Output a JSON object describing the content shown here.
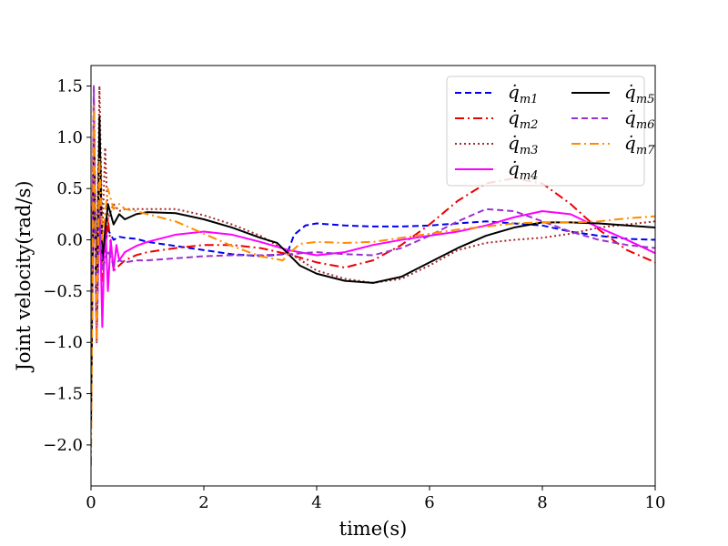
{
  "chart_data": {
    "type": "line",
    "title": "",
    "xlabel": "time(s)",
    "ylabel": "Joint velocity(rad/s)",
    "xlim": [
      0,
      10
    ],
    "ylim": [
      -2.4,
      1.7
    ],
    "xticks": [
      0,
      2,
      4,
      6,
      8,
      10
    ],
    "xtick_labels": [
      "0",
      "2",
      "4",
      "6",
      "8",
      "10"
    ],
    "yticks": [
      -2.0,
      -1.5,
      -1.0,
      -0.5,
      0.0,
      0.5,
      1.0,
      1.5
    ],
    "ytick_labels": [
      "−2.0",
      "−1.5",
      "−1.0",
      "−0.5",
      "0.0",
      "0.5",
      "1.0",
      "1.5"
    ],
    "grid": false,
    "legend_position": "top-right",
    "series": [
      {
        "name": "q̇m1",
        "label_main": "q̇",
        "label_sub": "m1",
        "color": "#0000ee",
        "dash": "dashed",
        "x": [
          0,
          0.05,
          0.1,
          0.15,
          0.2,
          0.3,
          0.4,
          0.5,
          0.6,
          0.8,
          1.0,
          1.5,
          2.0,
          2.5,
          3.0,
          3.4,
          3.5,
          3.6,
          3.8,
          4.0,
          4.5,
          5.0,
          5.5,
          6.0,
          6.5,
          7.0,
          7.5,
          8.0,
          8.5,
          9.0,
          9.5,
          10.0
        ],
        "y": [
          -1.5,
          0.6,
          -0.3,
          0.4,
          -0.2,
          0.1,
          0.0,
          0.03,
          0.02,
          0.01,
          -0.02,
          -0.06,
          -0.1,
          -0.14,
          -0.16,
          -0.14,
          -0.1,
          0.05,
          0.14,
          0.16,
          0.14,
          0.13,
          0.13,
          0.14,
          0.16,
          0.18,
          0.16,
          0.14,
          0.08,
          0.04,
          0.01,
          0.0
        ]
      },
      {
        "name": "q̇m2",
        "label_main": "q̇",
        "label_sub": "m2",
        "color": "#ee0000",
        "dash": "dashdot",
        "x": [
          0,
          0.05,
          0.1,
          0.15,
          0.2,
          0.3,
          0.4,
          0.5,
          0.6,
          0.8,
          1.0,
          1.5,
          2.0,
          2.5,
          3.0,
          3.5,
          4.0,
          4.5,
          5.0,
          5.5,
          6.0,
          6.5,
          7.0,
          7.5,
          8.0,
          8.5,
          9.0,
          9.5,
          10.0
        ],
        "y": [
          -1.8,
          1.3,
          -0.6,
          0.5,
          -0.4,
          0.2,
          -0.3,
          -0.25,
          -0.2,
          -0.15,
          -0.12,
          -0.08,
          -0.05,
          -0.05,
          -0.08,
          -0.14,
          -0.22,
          -0.27,
          -0.2,
          -0.05,
          0.15,
          0.38,
          0.55,
          0.6,
          0.55,
          0.35,
          0.1,
          -0.1,
          -0.22
        ]
      },
      {
        "name": "q̇m3",
        "label_main": "q̇",
        "label_sub": "m3",
        "color": "#a52a2a",
        "dash": "dotted",
        "x": [
          0,
          0.05,
          0.1,
          0.15,
          0.2,
          0.25,
          0.3,
          0.4,
          0.5,
          0.6,
          0.8,
          1.0,
          1.5,
          2.0,
          2.5,
          3.0,
          3.5,
          4.0,
          4.5,
          5.0,
          5.5,
          6.0,
          6.5,
          7.0,
          7.5,
          8.0,
          8.5,
          9.0,
          9.5,
          10.0
        ],
        "y": [
          -1.2,
          1.4,
          -0.5,
          1.5,
          0.0,
          0.9,
          0.2,
          0.35,
          0.28,
          0.3,
          0.3,
          0.3,
          0.3,
          0.24,
          0.15,
          0.04,
          -0.12,
          -0.3,
          -0.38,
          -0.42,
          -0.38,
          -0.25,
          -0.1,
          -0.03,
          0.0,
          0.02,
          0.06,
          0.12,
          0.15,
          0.18
        ]
      },
      {
        "name": "q̇m4",
        "label_main": "q̇",
        "label_sub": "m4",
        "color": "#ff00ff",
        "dash": "solid",
        "x": [
          0,
          0.05,
          0.1,
          0.15,
          0.2,
          0.25,
          0.3,
          0.35,
          0.4,
          0.45,
          0.5,
          0.6,
          0.8,
          1.0,
          1.5,
          2.0,
          2.5,
          3.0,
          3.5,
          4.0,
          4.5,
          5.0,
          5.5,
          6.0,
          6.5,
          7.0,
          7.5,
          8.0,
          8.5,
          9.0,
          9.5,
          10.0
        ],
        "y": [
          -0.5,
          0.9,
          -1.0,
          0.4,
          -0.85,
          0.2,
          -0.5,
          0.0,
          -0.3,
          -0.05,
          -0.2,
          -0.12,
          -0.06,
          -0.02,
          0.05,
          0.08,
          0.05,
          -0.02,
          -0.1,
          -0.15,
          -0.12,
          -0.05,
          0.0,
          0.04,
          0.08,
          0.14,
          0.22,
          0.28,
          0.25,
          0.12,
          0.0,
          -0.13
        ]
      },
      {
        "name": "q̇m5",
        "label_main": "q̇",
        "label_sub": "m5",
        "color": "#000000",
        "dash": "solid",
        "x": [
          0,
          0.05,
          0.1,
          0.15,
          0.2,
          0.3,
          0.4,
          0.5,
          0.6,
          0.8,
          1.0,
          1.5,
          2.0,
          2.5,
          3.0,
          3.3,
          3.5,
          3.7,
          4.0,
          4.5,
          5.0,
          5.5,
          6.0,
          6.5,
          7.0,
          7.5,
          8.0,
          8.5,
          9.0,
          9.5,
          10.0
        ],
        "y": [
          -1.8,
          1.0,
          -0.8,
          1.2,
          -0.2,
          0.35,
          0.15,
          0.25,
          0.2,
          0.25,
          0.27,
          0.26,
          0.2,
          0.12,
          0.02,
          -0.03,
          -0.14,
          -0.25,
          -0.33,
          -0.4,
          -0.42,
          -0.36,
          -0.22,
          -0.08,
          0.04,
          0.12,
          0.17,
          0.17,
          0.16,
          0.14,
          0.12
        ]
      },
      {
        "name": "q̇m6",
        "label_main": "q̇",
        "label_sub": "m6",
        "color": "#9932cc",
        "dash": "dashed",
        "x": [
          0,
          0.05,
          0.1,
          0.15,
          0.2,
          0.3,
          0.4,
          0.5,
          0.6,
          0.8,
          1.0,
          1.5,
          2.0,
          2.5,
          3.0,
          3.5,
          4.0,
          4.5,
          5.0,
          5.5,
          6.0,
          6.5,
          7.0,
          7.5,
          8.0,
          8.5,
          9.0,
          9.5,
          10.0
        ],
        "y": [
          -1.0,
          1.5,
          -1.0,
          0.3,
          -0.3,
          -0.1,
          -0.25,
          -0.2,
          -0.22,
          -0.2,
          -0.2,
          -0.18,
          -0.16,
          -0.15,
          -0.15,
          -0.14,
          -0.12,
          -0.14,
          -0.15,
          -0.08,
          0.04,
          0.18,
          0.3,
          0.28,
          0.18,
          0.08,
          0.0,
          -0.05,
          -0.08
        ]
      },
      {
        "name": "q̇m7",
        "label_main": "q̇",
        "label_sub": "m7",
        "color": "#ff8c00",
        "dash": "dashdot",
        "x": [
          0,
          0.05,
          0.1,
          0.15,
          0.2,
          0.3,
          0.4,
          0.5,
          0.6,
          0.8,
          1.0,
          1.5,
          2.0,
          2.5,
          3.0,
          3.2,
          3.4,
          3.5,
          3.7,
          4.0,
          4.5,
          5.0,
          5.5,
          6.0,
          6.5,
          7.0,
          7.5,
          8.0,
          8.5,
          9.0,
          9.5,
          10.0
        ],
        "y": [
          -2.2,
          1.3,
          -1.0,
          0.8,
          0.0,
          0.5,
          0.3,
          0.35,
          0.3,
          0.28,
          0.25,
          0.18,
          0.06,
          -0.06,
          -0.16,
          -0.18,
          -0.2,
          -0.14,
          -0.04,
          -0.02,
          -0.03,
          -0.02,
          0.02,
          0.06,
          0.1,
          0.13,
          0.16,
          0.17,
          0.17,
          0.18,
          0.21,
          0.23
        ]
      }
    ]
  }
}
